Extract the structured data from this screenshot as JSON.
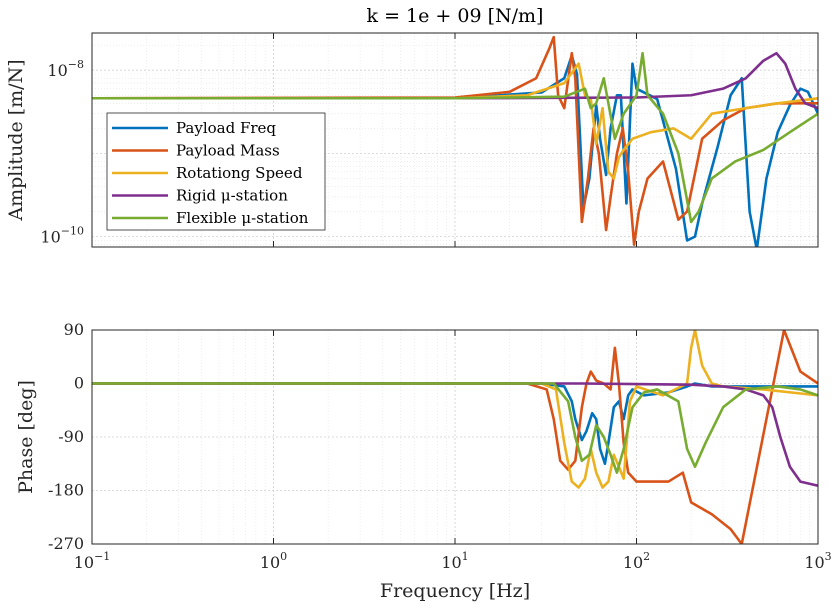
{
  "chart_data": [
    {
      "type": "line",
      "panel": "amplitude",
      "title": "k = 1e + 09 [N/m]",
      "xlabel": "",
      "ylabel": "Amplitude [m/N]",
      "xscale": "log",
      "yscale": "log",
      "xlim": [
        0.1,
        1000
      ],
      "ylim": [
        7.5e-11,
        2.8e-08
      ],
      "yticks": [
        {
          "v": 1e-10,
          "base": "10",
          "exp": "−10"
        },
        {
          "v": 1e-08,
          "base": "10",
          "exp": "−8"
        }
      ],
      "grid": true,
      "legend_position": "center-left",
      "series": [
        {
          "name": "Payload Freq",
          "color": "#0072BD",
          "points": [
            [
              0.1,
              4.6e-09
            ],
            [
              10,
              4.6e-09
            ],
            [
              30,
              5.4e-09
            ],
            [
              40,
              8e-09
            ],
            [
              44,
              1.5e-08
            ],
            [
              47,
              9e-09
            ],
            [
              51,
              2.2e-10
            ],
            [
              55,
              5e-10
            ],
            [
              60,
              3.8e-09
            ],
            [
              63,
              1.5e-09
            ],
            [
              68,
              5.5e-10
            ],
            [
              72,
              2e-09
            ],
            [
              78,
              5e-09
            ],
            [
              82,
              5e-09
            ],
            [
              88,
              2.5e-10
            ],
            [
              95,
              1.2e-08
            ],
            [
              100,
              6e-09
            ],
            [
              130,
              4.5e-09
            ],
            [
              165,
              6.5e-10
            ],
            [
              190,
              9e-11
            ],
            [
              210,
              1e-10
            ],
            [
              230,
              2.5e-10
            ],
            [
              280,
              1.2e-09
            ],
            [
              330,
              5e-09
            ],
            [
              380,
              8e-09
            ],
            [
              420,
              2e-10
            ],
            [
              460,
              7e-11
            ],
            [
              520,
              5e-10
            ],
            [
              600,
              1.8e-09
            ],
            [
              700,
              3.8e-09
            ],
            [
              800,
              6e-09
            ],
            [
              880,
              5.5e-09
            ],
            [
              1000,
              3e-09
            ]
          ]
        },
        {
          "name": "Payload Mass",
          "color": "#D95319",
          "points": [
            [
              0.1,
              4.6e-09
            ],
            [
              10,
              4.7e-09
            ],
            [
              20,
              5.5e-09
            ],
            [
              28,
              8e-09
            ],
            [
              33,
              1.8e-08
            ],
            [
              35,
              2.5e-08
            ],
            [
              37,
              5e-09
            ],
            [
              40,
              3.5e-09
            ],
            [
              44,
              1.6e-08
            ],
            [
              46,
              8e-09
            ],
            [
              50,
              1.5e-10
            ],
            [
              54,
              5e-10
            ],
            [
              58,
              2e-09
            ],
            [
              62,
              1e-09
            ],
            [
              68,
              1.2e-10
            ],
            [
              72,
              3e-10
            ],
            [
              78,
              1e-09
            ],
            [
              84,
              2e-09
            ],
            [
              90,
              6e-10
            ],
            [
              97,
              8e-11
            ],
            [
              103,
              2e-10
            ],
            [
              115,
              5e-10
            ],
            [
              140,
              8e-10
            ],
            [
              170,
              1.6e-10
            ],
            [
              190,
              2e-10
            ],
            [
              230,
              1.5e-09
            ],
            [
              300,
              2.5e-09
            ],
            [
              400,
              3.5e-09
            ],
            [
              600,
              4e-09
            ],
            [
              1000,
              4e-09
            ]
          ]
        },
        {
          "name": "Rotationg Speed",
          "color": "#EDB120",
          "points": [
            [
              0.1,
              4.6e-09
            ],
            [
              10,
              4.6e-09
            ],
            [
              25,
              5e-09
            ],
            [
              40,
              7e-09
            ],
            [
              48,
              1.2e-08
            ],
            [
              52,
              5e-09
            ],
            [
              56,
              4.5e-09
            ],
            [
              60,
              1.3e-09
            ],
            [
              65,
              3.5e-09
            ],
            [
              70,
              6e-10
            ],
            [
              75,
              5e-10
            ],
            [
              80,
              9e-10
            ],
            [
              85,
              1.1e-09
            ],
            [
              95,
              1.5e-09
            ],
            [
              120,
              1.8e-09
            ],
            [
              160,
              2e-09
            ],
            [
              200,
              1.5e-09
            ],
            [
              260,
              3e-09
            ],
            [
              400,
              3.5e-09
            ],
            [
              600,
              4e-09
            ],
            [
              1000,
              4.6e-09
            ]
          ]
        },
        {
          "name": "Rigid μ-station",
          "color": "#7E2F8E",
          "points": [
            [
              0.1,
              4.6e-09
            ],
            [
              10,
              4.6e-09
            ],
            [
              100,
              4.7e-09
            ],
            [
              200,
              5e-09
            ],
            [
              300,
              6e-09
            ],
            [
              400,
              8e-09
            ],
            [
              500,
              1.3e-08
            ],
            [
              590,
              1.6e-08
            ],
            [
              660,
              1.2e-08
            ],
            [
              750,
              6e-09
            ],
            [
              850,
              4e-09
            ],
            [
              1000,
              3.5e-09
            ]
          ]
        },
        {
          "name": "Flexible μ-station",
          "color": "#77AC30",
          "points": [
            [
              0.1,
              4.6e-09
            ],
            [
              10,
              4.6e-09
            ],
            [
              40,
              4.8e-09
            ],
            [
              52,
              6e-09
            ],
            [
              56,
              3.5e-09
            ],
            [
              60,
              4e-09
            ],
            [
              66,
              8e-09
            ],
            [
              70,
              4e-09
            ],
            [
              76,
              1.5e-09
            ],
            [
              85,
              3e-09
            ],
            [
              100,
              5e-09
            ],
            [
              108,
              1.6e-08
            ],
            [
              115,
              5e-09
            ],
            [
              140,
              3e-09
            ],
            [
              170,
              1e-09
            ],
            [
              200,
              1.5e-10
            ],
            [
              220,
              2e-10
            ],
            [
              260,
              5e-10
            ],
            [
              350,
              8e-10
            ],
            [
              500,
              1.1e-09
            ],
            [
              700,
              1.8e-09
            ],
            [
              1000,
              3e-09
            ]
          ]
        }
      ]
    },
    {
      "type": "line",
      "panel": "phase",
      "title": "",
      "xlabel": "Frequency [Hz]",
      "ylabel": "Phase [deg]",
      "xscale": "log",
      "xlim": [
        0.1,
        1000
      ],
      "ylim": [
        -270,
        90
      ],
      "yticks": [
        90,
        0,
        -90,
        -180,
        -270
      ],
      "xticks": [
        {
          "v": 0.1,
          "base": "10",
          "exp": "−1"
        },
        {
          "v": 1,
          "base": "10",
          "exp": "0"
        },
        {
          "v": 10,
          "base": "10",
          "exp": "1"
        },
        {
          "v": 100,
          "base": "10",
          "exp": "2"
        },
        {
          "v": 1000,
          "base": "10",
          "exp": "3"
        }
      ],
      "grid": true,
      "series": [
        {
          "name": "Payload Freq",
          "color": "#0072BD",
          "points": [
            [
              0.1,
              0
            ],
            [
              30,
              0
            ],
            [
              40,
              -5
            ],
            [
              44,
              -30
            ],
            [
              46,
              -60
            ],
            [
              50,
              -95
            ],
            [
              53,
              -80
            ],
            [
              57,
              -50
            ],
            [
              60,
              -60
            ],
            [
              63,
              -110
            ],
            [
              67,
              -135
            ],
            [
              70,
              -100
            ],
            [
              75,
              -40
            ],
            [
              80,
              -30
            ],
            [
              85,
              -60
            ],
            [
              90,
              -20
            ],
            [
              95,
              -10
            ],
            [
              110,
              -20
            ],
            [
              150,
              -15
            ],
            [
              190,
              -5
            ],
            [
              210,
              0
            ],
            [
              260,
              -5
            ],
            [
              400,
              -5
            ],
            [
              700,
              -5
            ],
            [
              1000,
              -5
            ]
          ]
        },
        {
          "name": "Payload Mass",
          "color": "#D95319",
          "points": [
            [
              0.1,
              0
            ],
            [
              25,
              0
            ],
            [
              32,
              -10
            ],
            [
              35,
              -60
            ],
            [
              38,
              -130
            ],
            [
              42,
              -145
            ],
            [
              46,
              -130
            ],
            [
              50,
              -40
            ],
            [
              53,
              0
            ],
            [
              56,
              20
            ],
            [
              60,
              5
            ],
            [
              66,
              0
            ],
            [
              72,
              -10
            ],
            [
              76,
              60
            ],
            [
              80,
              0
            ],
            [
              85,
              -100
            ],
            [
              90,
              -150
            ],
            [
              100,
              -165
            ],
            [
              150,
              -165
            ],
            [
              180,
              -150
            ],
            [
              200,
              -200
            ],
            [
              260,
              -220
            ],
            [
              330,
              -245
            ],
            [
              380,
              -270
            ],
            [
              650,
              90
            ],
            [
              800,
              20
            ],
            [
              1000,
              0
            ]
          ]
        },
        {
          "name": "Rotationg Speed",
          "color": "#EDB120",
          "points": [
            [
              0.1,
              0
            ],
            [
              30,
              0
            ],
            [
              36,
              -10
            ],
            [
              40,
              -100
            ],
            [
              44,
              -165
            ],
            [
              48,
              -175
            ],
            [
              52,
              -160
            ],
            [
              56,
              -110
            ],
            [
              60,
              -150
            ],
            [
              65,
              -175
            ],
            [
              70,
              -165
            ],
            [
              75,
              -120
            ],
            [
              80,
              -140
            ],
            [
              85,
              -160
            ],
            [
              92,
              -30
            ],
            [
              100,
              -5
            ],
            [
              140,
              -20
            ],
            [
              190,
              0
            ],
            [
              200,
              60
            ],
            [
              210,
              90
            ],
            [
              230,
              30
            ],
            [
              260,
              0
            ],
            [
              300,
              -5
            ],
            [
              500,
              -10
            ],
            [
              1000,
              -20
            ]
          ]
        },
        {
          "name": "Rigid μ-station",
          "color": "#7E2F8E",
          "points": [
            [
              0.1,
              0
            ],
            [
              50,
              0
            ],
            [
              200,
              -2
            ],
            [
              300,
              -5
            ],
            [
              400,
              -10
            ],
            [
              500,
              -20
            ],
            [
              560,
              -40
            ],
            [
              620,
              -90
            ],
            [
              700,
              -140
            ],
            [
              800,
              -165
            ],
            [
              1000,
              -172
            ]
          ]
        },
        {
          "name": "Flexible μ-station",
          "color": "#77AC30",
          "points": [
            [
              0.1,
              0
            ],
            [
              35,
              0
            ],
            [
              42,
              -30
            ],
            [
              46,
              -90
            ],
            [
              50,
              -130
            ],
            [
              55,
              -120
            ],
            [
              60,
              -70
            ],
            [
              66,
              -90
            ],
            [
              72,
              -120
            ],
            [
              78,
              -150
            ],
            [
              85,
              -110
            ],
            [
              95,
              -40
            ],
            [
              110,
              -15
            ],
            [
              130,
              -10
            ],
            [
              170,
              -30
            ],
            [
              190,
              -110
            ],
            [
              210,
              -140
            ],
            [
              240,
              -100
            ],
            [
              300,
              -40
            ],
            [
              400,
              -10
            ],
            [
              600,
              -5
            ],
            [
              800,
              -10
            ],
            [
              1000,
              -20
            ]
          ]
        }
      ]
    }
  ]
}
